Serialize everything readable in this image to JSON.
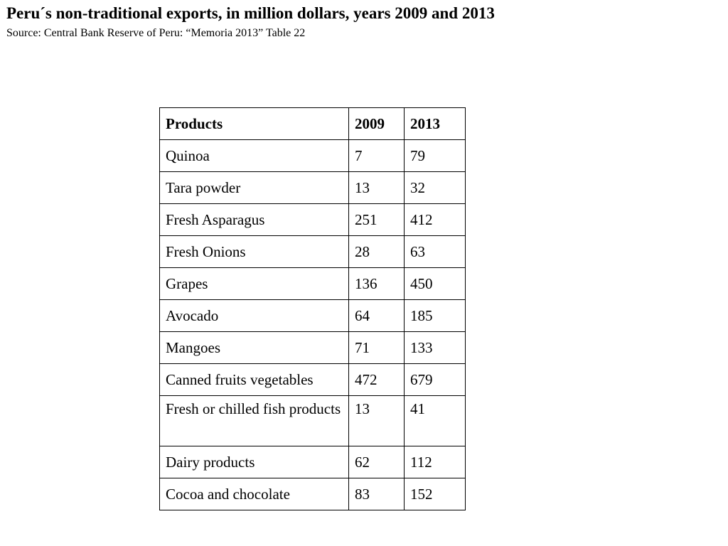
{
  "header": {
    "title": "Peru´s non-traditional exports, in million dollars, years 2009 and 2013",
    "source": "Source: Central Bank Reserve of Peru: “Memoria 2013” Table 22"
  },
  "table": {
    "columns": [
      "Products",
      "2009",
      "2013"
    ],
    "rows": [
      {
        "product": "Quinoa",
        "y2009": "7",
        "y2013": "79"
      },
      {
        "product": "Tara powder",
        "y2009": "13",
        "y2013": "32"
      },
      {
        "product": "Fresh Asparagus",
        "y2009": "251",
        "y2013": "412"
      },
      {
        "product": "Fresh Onions",
        "y2009": "28",
        "y2013": "63"
      },
      {
        "product": "Grapes",
        "y2009": "136",
        "y2013": "450"
      },
      {
        "product": "Avocado",
        "y2009": "64",
        "y2013": "185"
      },
      {
        "product": "Mangoes",
        "y2009": "71",
        "y2013": "133"
      },
      {
        "product": "Canned fruits vegetables",
        "y2009": "472",
        "y2013": "679"
      },
      {
        "product": "Fresh or chilled fish products",
        "y2009": "13",
        "y2013": "41"
      },
      {
        "product": "Dairy products",
        "y2009": "62",
        "y2013": "112"
      },
      {
        "product": "Cocoa and chocolate",
        "y2009": "83",
        "y2013": "152"
      }
    ]
  }
}
